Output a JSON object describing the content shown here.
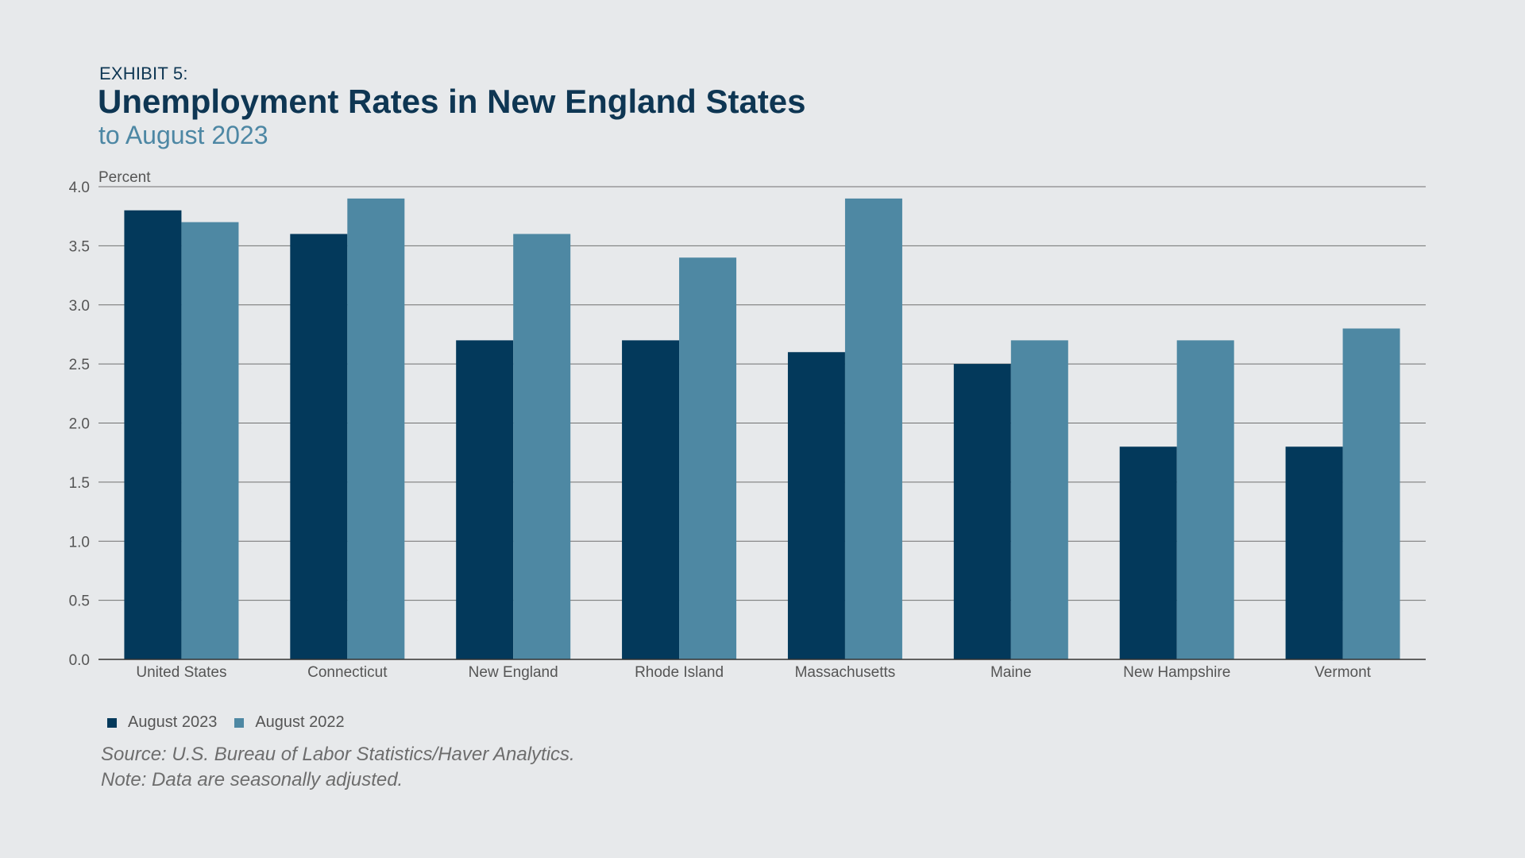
{
  "header": {
    "exhibit": "EXHIBIT 5:",
    "title": "Unemployment Rates in New England States",
    "subtitle": "to August 2023"
  },
  "colors": {
    "august_2023": "#03395b",
    "august_2022": "#4e88a3",
    "background": "#e7e9eb",
    "gridline": "#707070"
  },
  "chart_data": {
    "type": "bar",
    "title": "Unemployment Rates in New England States",
    "subtitle": "to August 2023",
    "ylabel": "Percent",
    "xlabel": "",
    "ylim": [
      0,
      4.0
    ],
    "yticks": [
      "0.0",
      "0.5",
      "1.0",
      "1.5",
      "2.0",
      "2.5",
      "3.0",
      "3.5",
      "4.0"
    ],
    "grid": true,
    "legend_position": "bottom-left",
    "categories": [
      "United States",
      "Connecticut",
      "New England",
      "Rhode Island",
      "Massachusetts",
      "Maine",
      "New Hampshire",
      "Vermont"
    ],
    "series": [
      {
        "name": "August 2023",
        "color": "#03395b",
        "values": [
          3.8,
          3.6,
          2.7,
          2.7,
          2.6,
          2.5,
          1.8,
          1.8
        ]
      },
      {
        "name": "August 2022",
        "color": "#4e88a3",
        "values": [
          3.7,
          3.9,
          3.6,
          3.4,
          3.9,
          2.7,
          2.7,
          2.8
        ]
      }
    ]
  },
  "footer": {
    "source": "Source: U.S. Bureau of Labor Statistics/Haver Analytics.",
    "note": "Note: Data are seasonally adjusted."
  }
}
